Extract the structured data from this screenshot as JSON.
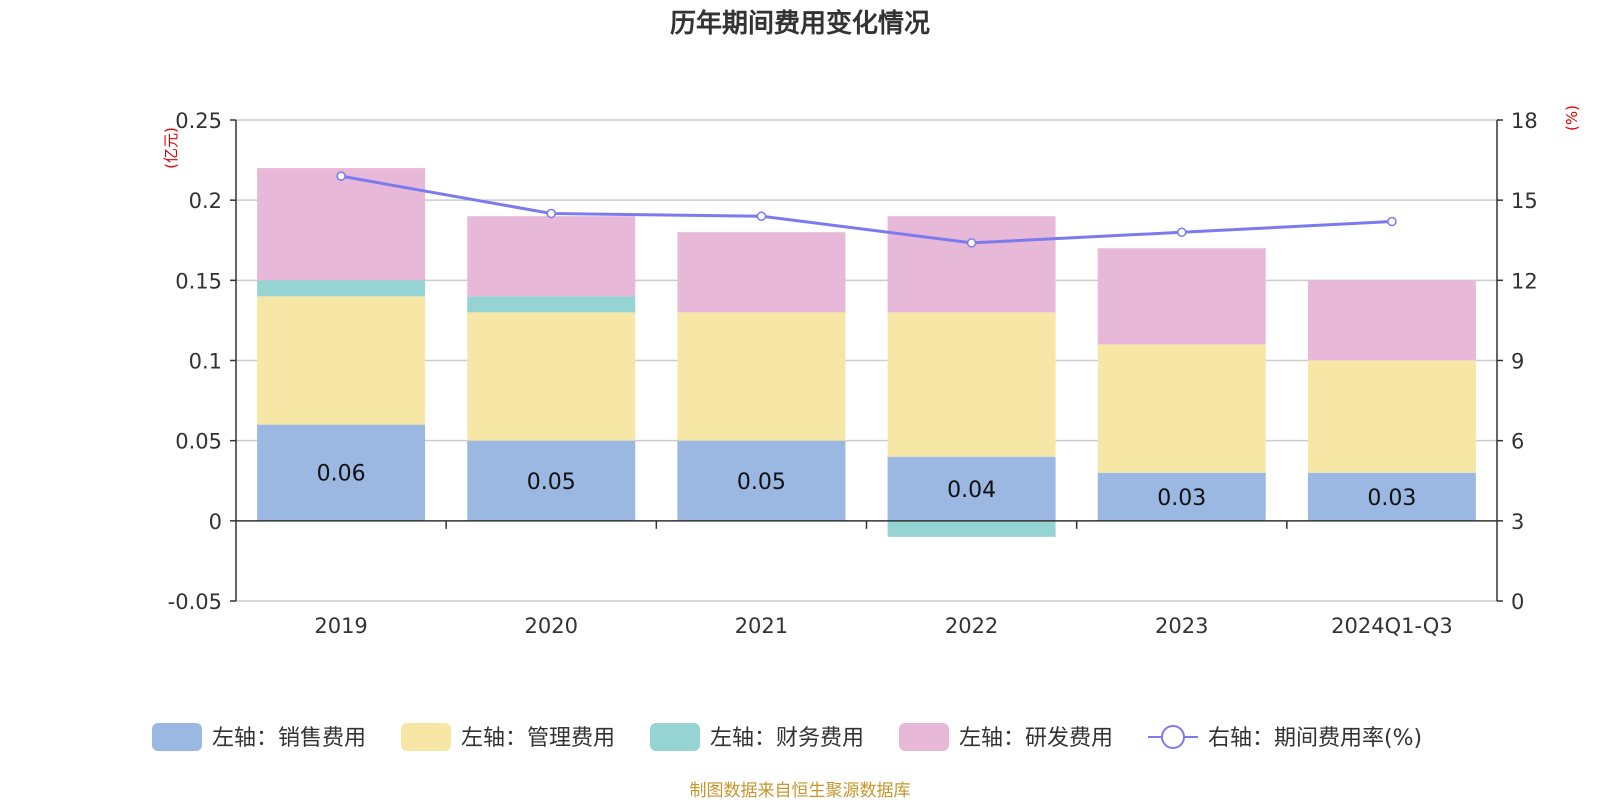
{
  "chart_data": {
    "type": "bar",
    "stacked": true,
    "title": "历年期间费用变化情况",
    "left_unit": "(亿元)",
    "right_unit": "(%)",
    "categories": [
      "2019",
      "2020",
      "2021",
      "2022",
      "2023",
      "2024Q1-Q3"
    ],
    "left_axis": {
      "ylim": [
        -0.05,
        0.25
      ],
      "ticks": [
        -0.05,
        0,
        0.05,
        0.1,
        0.15,
        0.2,
        0.25
      ],
      "tick_labels": [
        "-0.05",
        "0",
        "0.05",
        "0.1",
        "0.15",
        "0.2",
        "0.25"
      ]
    },
    "right_axis": {
      "ylim": [
        0,
        18
      ],
      "ticks": [
        0,
        3,
        6,
        9,
        12,
        15,
        18
      ],
      "tick_labels": [
        "0",
        "3",
        "6",
        "9",
        "12",
        "15",
        "18"
      ]
    },
    "series": [
      {
        "name": "左轴：销售费用",
        "color": "#9bb8e3",
        "values": [
          0.06,
          0.05,
          0.05,
          0.04,
          0.03,
          0.03
        ],
        "labels": [
          "0.06",
          "0.05",
          "0.05",
          "0.04",
          "0.03",
          "0.03"
        ]
      },
      {
        "name": "左轴：管理费用",
        "color": "#f7e7a6",
        "values": [
          0.08,
          0.08,
          0.08,
          0.09,
          0.08,
          0.07
        ]
      },
      {
        "name": "左轴：财务费用",
        "color": "#96d4d4",
        "values": [
          0.01,
          0.01,
          0.0,
          -0.01,
          0.0,
          0.0
        ]
      },
      {
        "name": "左轴：研发费用",
        "color": "#e8b8d8",
        "values": [
          0.07,
          0.05,
          0.05,
          0.06,
          0.06,
          0.05
        ]
      }
    ],
    "line_series": {
      "name": "右轴：期间费用率(%)",
      "color": "#7b7bef",
      "values": [
        15.9,
        14.5,
        14.4,
        13.4,
        13.8,
        14.2
      ]
    },
    "source": "制图数据来自恒生聚源数据库"
  }
}
